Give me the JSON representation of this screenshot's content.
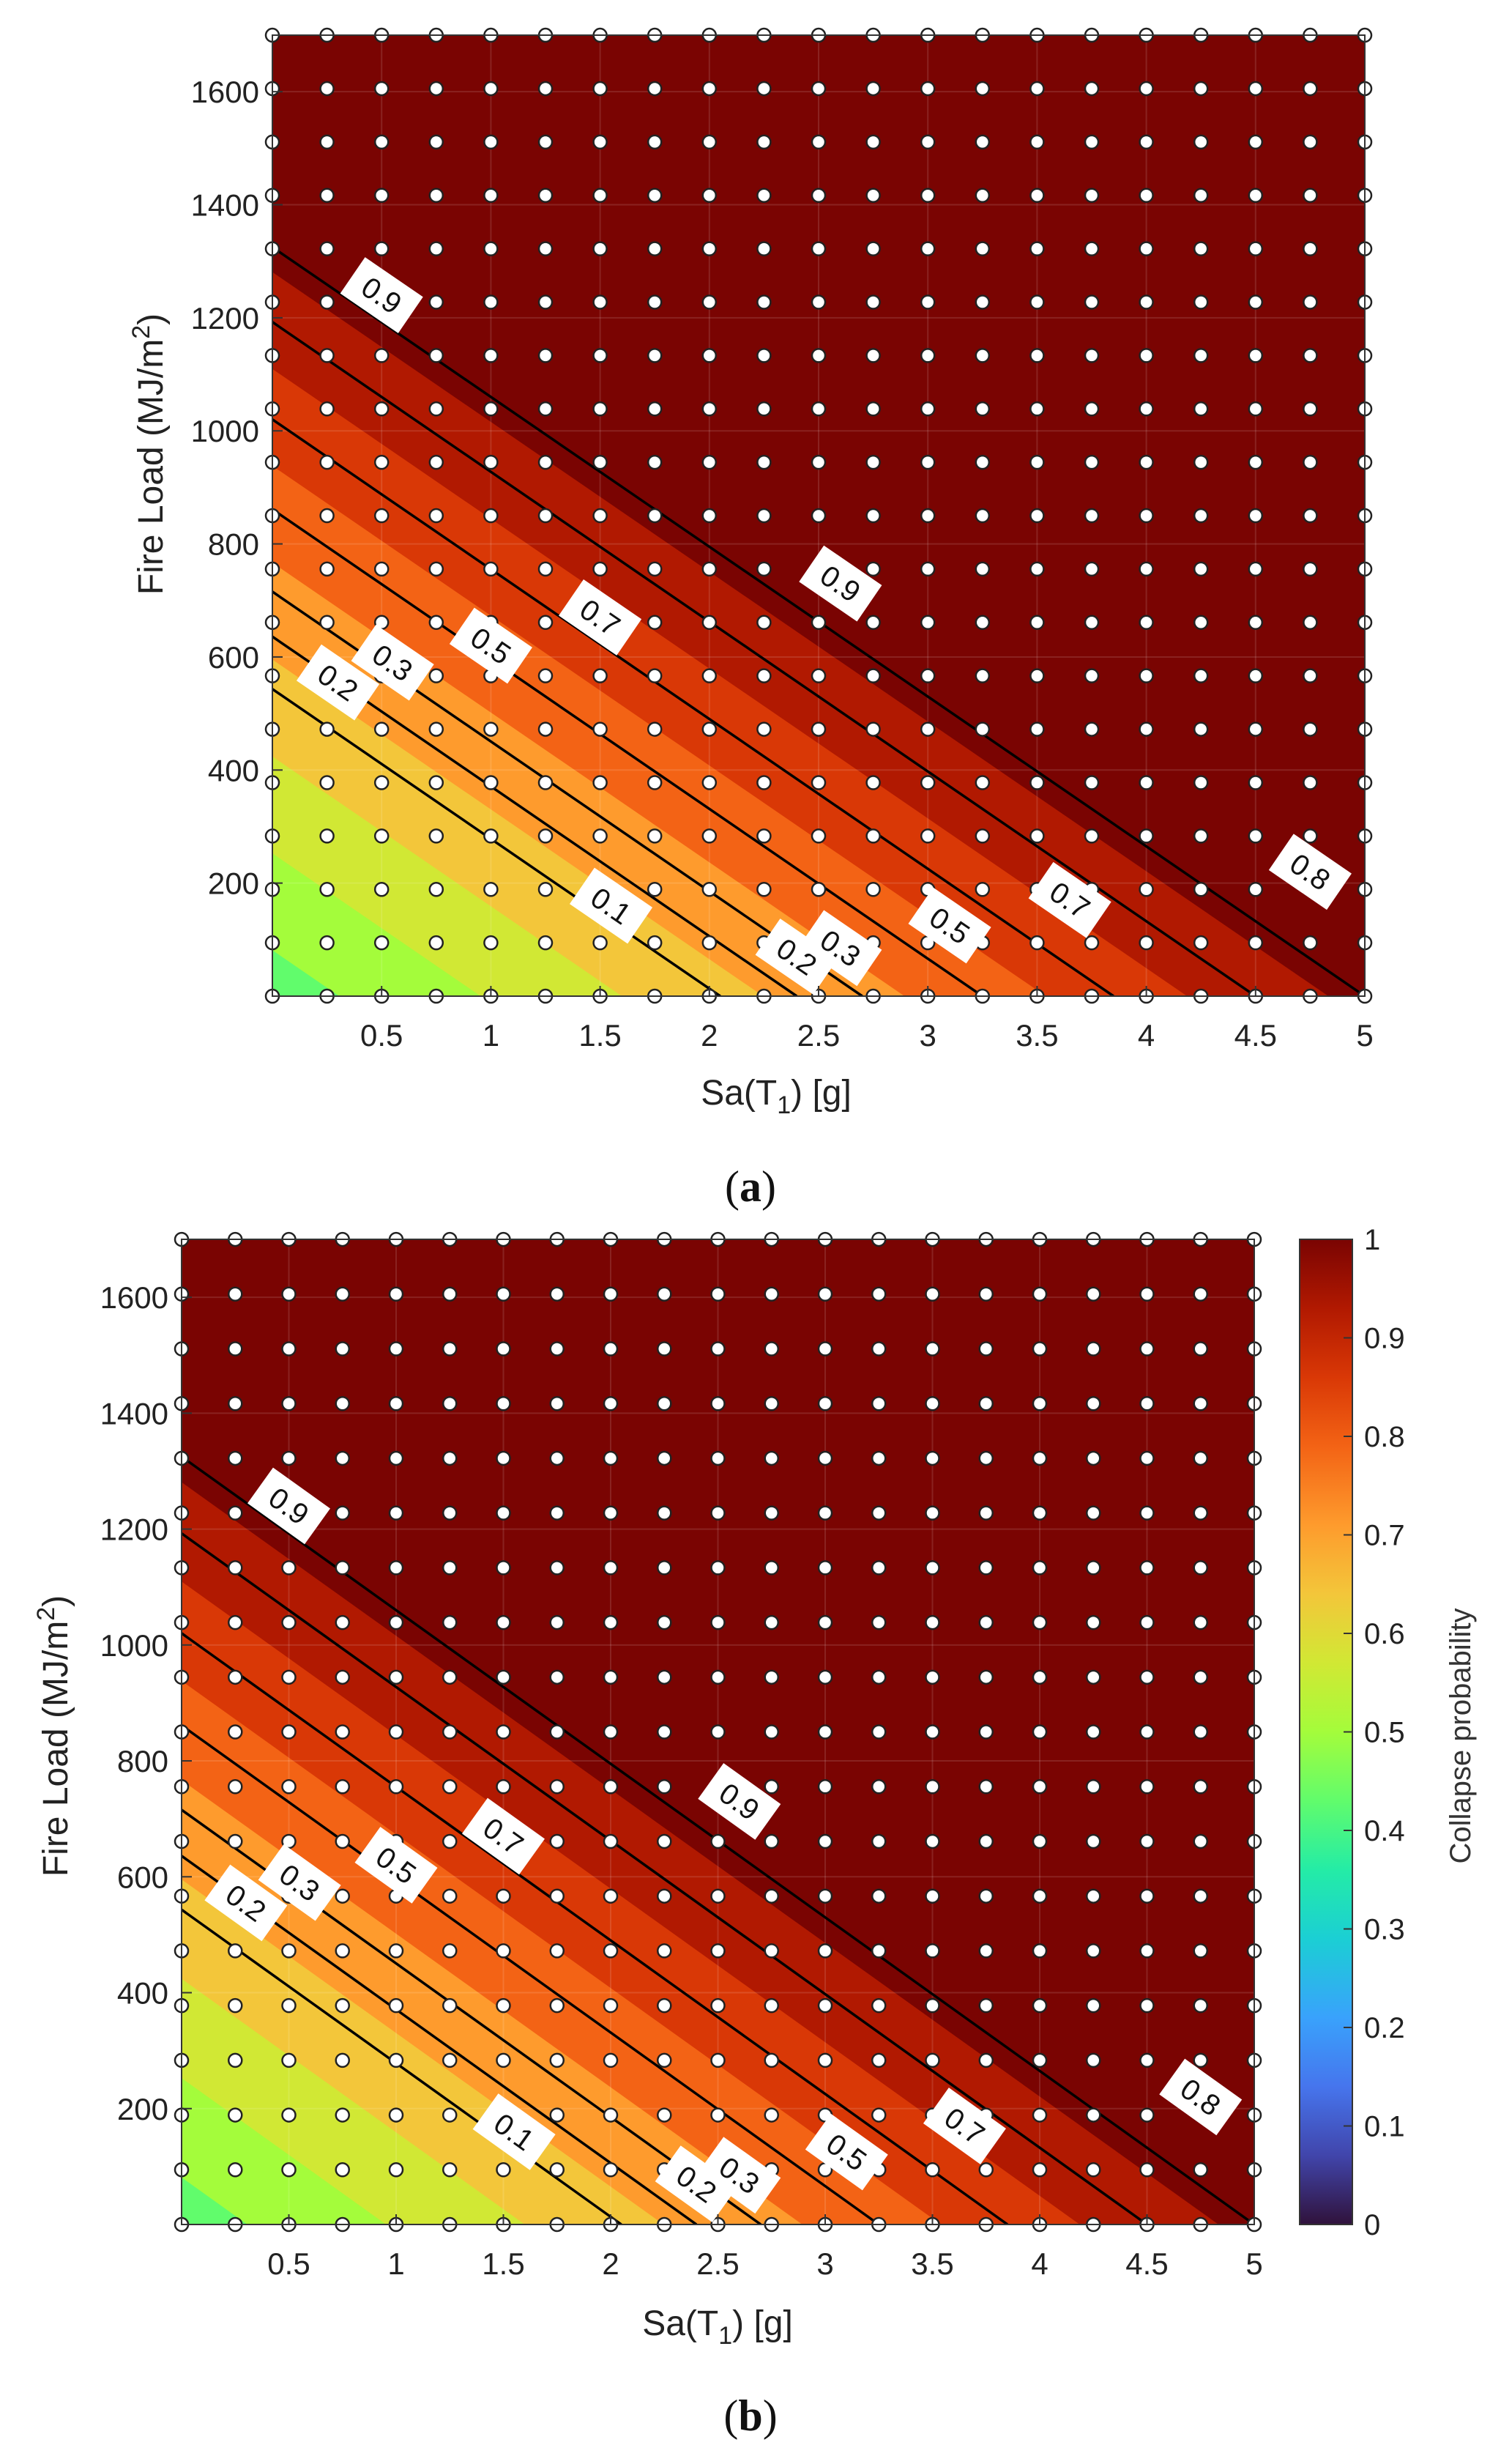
{
  "chart_data": [
    {
      "panel": "(a)",
      "caption_open": "(",
      "caption_letter": "a",
      "caption_close": ")",
      "type": "contour",
      "xlabel_main": "Sa(T",
      "xlabel_sub": "1",
      "xlabel_end": ") [g]",
      "ylabel_main": "Fire Load (MJ/m",
      "ylabel_sup": "2",
      "ylabel_end": ")",
      "xlim": [
        0,
        5
      ],
      "ylim": [
        0,
        1700
      ],
      "xticks": [
        0.5,
        1,
        1.5,
        2,
        2.5,
        3,
        3.5,
        4,
        4.5,
        5
      ],
      "xtick_labels": [
        "0.5",
        "1",
        "1.5",
        "2",
        "2.5",
        "3",
        "3.5",
        "4",
        "4.5",
        "5"
      ],
      "yticks": [
        200,
        400,
        600,
        800,
        1000,
        1200,
        1400,
        1600
      ],
      "ytick_labels": [
        "200",
        "400",
        "600",
        "800",
        "1000",
        "1200",
        "1400",
        "1600"
      ],
      "sample_grid": {
        "x_start": 0,
        "x_step": 0.25,
        "x_count": 21,
        "y_start": 0,
        "y_step": 94.44,
        "y_count": 19
      },
      "contour_lines": [
        {
          "level": 0.1,
          "x_at_y0": 2.05,
          "slope_fl_per_g": -265
        },
        {
          "level": 0.2,
          "x_at_y0": 2.4,
          "slope_fl_per_g": -265
        },
        {
          "level": 0.3,
          "x_at_y0": 2.7,
          "slope_fl_per_g": -265
        },
        {
          "level": 0.5,
          "x_at_y0": 3.25,
          "slope_fl_per_g": -265
        },
        {
          "level": 0.7,
          "x_at_y0": 3.85,
          "slope_fl_per_g": -265
        },
        {
          "level": 0.8,
          "x_at_y0": 4.5,
          "slope_fl_per_g": -265
        },
        {
          "level": 0.9,
          "x_at_y0": 5.0,
          "slope_fl_per_g": -265
        }
      ],
      "contour_labels": [
        {
          "text": "0.9",
          "x": 0.5,
          "y": 1240
        },
        {
          "text": "0.9",
          "x": 2.6,
          "y": 730
        },
        {
          "text": "0.7",
          "x": 1.5,
          "y": 670
        },
        {
          "text": "0.5",
          "x": 1.0,
          "y": 620
        },
        {
          "text": "0.3",
          "x": 0.55,
          "y": 590
        },
        {
          "text": "0.2",
          "x": 0.3,
          "y": 555
        },
        {
          "text": "0.1",
          "x": 1.55,
          "y": 160
        },
        {
          "text": "0.2",
          "x": 2.4,
          "y": 70
        },
        {
          "text": "0.3",
          "x": 2.6,
          "y": 85
        },
        {
          "text": "0.5",
          "x": 3.1,
          "y": 125
        },
        {
          "text": "0.7",
          "x": 3.65,
          "y": 170
        },
        {
          "text": "0.8",
          "x": 4.75,
          "y": 220
        }
      ]
    },
    {
      "panel": "(b)",
      "caption_open": "(",
      "caption_letter": "b",
      "caption_close": ")",
      "type": "contour",
      "xlabel_main": "Sa(T",
      "xlabel_sub": "1",
      "xlabel_end": ") [g]",
      "ylabel_main": "Fire Load (MJ/m",
      "ylabel_sup": "2",
      "ylabel_end": ")",
      "xlim": [
        0,
        5
      ],
      "ylim": [
        0,
        1700
      ],
      "xticks": [
        0.5,
        1,
        1.5,
        2,
        2.5,
        3,
        3.5,
        4,
        4.5,
        5
      ],
      "xtick_labels": [
        "0.5",
        "1",
        "1.5",
        "2",
        "2.5",
        "3",
        "3.5",
        "4",
        "4.5",
        "5"
      ],
      "yticks": [
        200,
        400,
        600,
        800,
        1000,
        1200,
        1400,
        1600
      ],
      "ytick_labels": [
        "200",
        "400",
        "600",
        "800",
        "1000",
        "1200",
        "1400",
        "1600"
      ],
      "sample_grid": {
        "x_start": 0,
        "x_step": 0.25,
        "x_count": 21,
        "y_start": 0,
        "y_step": 94.44,
        "y_count": 19
      },
      "contour_lines": [
        {
          "level": 0.1,
          "x_at_y0": 2.05,
          "slope_fl_per_g": -265
        },
        {
          "level": 0.2,
          "x_at_y0": 2.4,
          "slope_fl_per_g": -265
        },
        {
          "level": 0.3,
          "x_at_y0": 2.7,
          "slope_fl_per_g": -265
        },
        {
          "level": 0.5,
          "x_at_y0": 3.25,
          "slope_fl_per_g": -265
        },
        {
          "level": 0.7,
          "x_at_y0": 3.85,
          "slope_fl_per_g": -265
        },
        {
          "level": 0.8,
          "x_at_y0": 4.5,
          "slope_fl_per_g": -265
        },
        {
          "level": 0.9,
          "x_at_y0": 5.0,
          "slope_fl_per_g": -265
        }
      ],
      "contour_labels": [
        {
          "text": "0.9",
          "x": 0.5,
          "y": 1240
        },
        {
          "text": "0.9",
          "x": 2.6,
          "y": 730
        },
        {
          "text": "0.7",
          "x": 1.5,
          "y": 670
        },
        {
          "text": "0.5",
          "x": 1.0,
          "y": 620
        },
        {
          "text": "0.3",
          "x": 0.55,
          "y": 590
        },
        {
          "text": "0.2",
          "x": 0.3,
          "y": 555
        },
        {
          "text": "0.1",
          "x": 1.55,
          "y": 160
        },
        {
          "text": "0.2",
          "x": 2.4,
          "y": 70
        },
        {
          "text": "0.3",
          "x": 2.6,
          "y": 85
        },
        {
          "text": "0.5",
          "x": 3.1,
          "y": 125
        },
        {
          "text": "0.7",
          "x": 3.65,
          "y": 170
        },
        {
          "text": "0.8",
          "x": 4.75,
          "y": 220
        }
      ],
      "colorbar": {
        "label": "Collapse probability",
        "range": [
          0,
          1
        ],
        "ticks": [
          0,
          0.1,
          0.2,
          0.3,
          0.4,
          0.5,
          0.6,
          0.7,
          0.8,
          0.9,
          1
        ],
        "tick_labels": [
          "0",
          "0.1",
          "0.2",
          "0.3",
          "0.4",
          "0.5",
          "0.6",
          "0.7",
          "0.8",
          "0.9",
          "1"
        ]
      }
    }
  ],
  "colormap": [
    "#30123b",
    "#4145ab",
    "#4675ed",
    "#39a2fc",
    "#1bcfd4",
    "#24eca6",
    "#61fc6c",
    "#a4fc3b",
    "#d1e834",
    "#f3c63a",
    "#fe9b2d",
    "#f36315",
    "#d93806",
    "#b11901",
    "#7a0402"
  ],
  "colors": {
    "contour_line": "#000000",
    "marker_fill": "#ffffff",
    "marker_edge": "#222222",
    "label_box": "#ffffff"
  }
}
